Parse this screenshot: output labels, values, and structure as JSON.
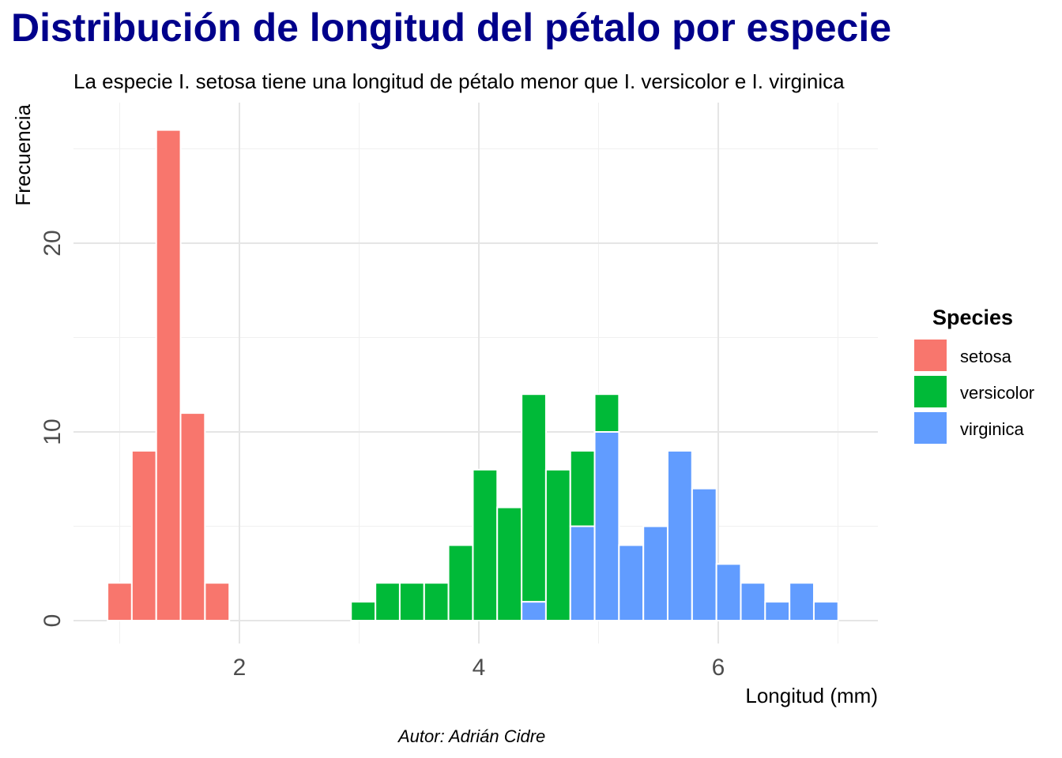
{
  "chart_data": {
    "type": "bar",
    "subtype": "stacked-histogram",
    "title": "Distribución de longitud del pétalo por especie",
    "subtitle": "La especie I. setosa tiene una longitud de pétalo menor que I. versicolor e I. virginica",
    "caption": "Autor: Adrián Cidre",
    "xlabel": "Longitud (mm)",
    "ylabel": "Frecuencia",
    "xlim": [
      0.9,
      7.0
    ],
    "ylim": [
      0,
      27
    ],
    "x_ticks": [
      2,
      4,
      6
    ],
    "y_ticks": [
      0,
      10,
      20
    ],
    "bin_width": 0.2034,
    "bin_centers": [
      1.0,
      1.203,
      1.407,
      1.61,
      1.814,
      2.017,
      2.221,
      2.424,
      2.628,
      2.831,
      3.034,
      3.238,
      3.441,
      3.645,
      3.848,
      4.052,
      4.255,
      4.459,
      4.662,
      4.866,
      5.069,
      5.272,
      5.476,
      5.679,
      5.883,
      6.086,
      6.29,
      6.493,
      6.697,
      6.9
    ],
    "legend": {
      "title": "Species",
      "position": "right"
    },
    "series": [
      {
        "name": "setosa",
        "color": "#F8766D",
        "values": [
          2,
          9,
          26,
          11,
          2,
          0,
          0,
          0,
          0,
          0,
          0,
          0,
          0,
          0,
          0,
          0,
          0,
          0,
          0,
          0,
          0,
          0,
          0,
          0,
          0,
          0,
          0,
          0,
          0,
          0
        ]
      },
      {
        "name": "versicolor",
        "color": "#00BA38",
        "values": [
          0,
          0,
          0,
          0,
          0,
          0,
          0,
          0,
          0,
          0,
          1,
          2,
          2,
          2,
          4,
          8,
          6,
          11,
          8,
          4,
          2,
          0,
          0,
          0,
          0,
          0,
          0,
          0,
          0,
          0
        ]
      },
      {
        "name": "virginica",
        "color": "#619CFF",
        "values": [
          0,
          0,
          0,
          0,
          0,
          0,
          0,
          0,
          0,
          0,
          0,
          0,
          0,
          0,
          0,
          0,
          0,
          1,
          0,
          5,
          10,
          4,
          5,
          9,
          7,
          3,
          2,
          1,
          2,
          1
        ]
      }
    ]
  }
}
